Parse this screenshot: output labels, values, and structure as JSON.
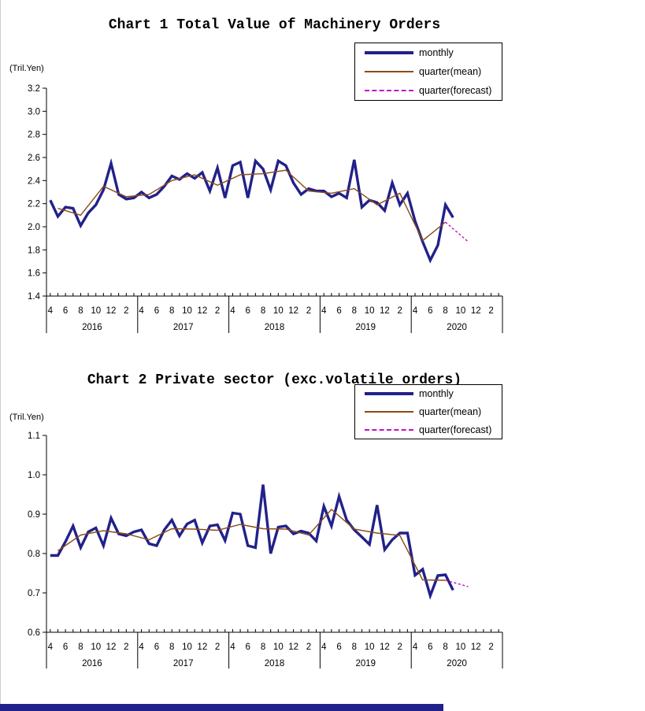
{
  "page": {
    "background": "#FFFFFF",
    "footer_bar_color": "#20218A"
  },
  "chart_data": [
    {
      "type": "line",
      "title": "Chart 1 Total Value of Machinery Orders",
      "ylabel": "(Tril.Yen)",
      "ylim": [
        1.4,
        3.2
      ],
      "ytick_step": 0.2,
      "ytick_labels": [
        "1.4",
        "1.6",
        "1.8",
        "2.0",
        "2.2",
        "2.4",
        "2.6",
        "2.8",
        "3.0",
        "3.2"
      ],
      "x_axis": {
        "month_labels": [
          "4",
          "6",
          "8",
          "10",
          "12",
          "2"
        ],
        "years": [
          "2016",
          "2017",
          "2018",
          "2019",
          "2020"
        ],
        "first_data_month": "2016-04",
        "last_actual_month": "2020-09"
      },
      "legend_position": "top-right",
      "grid": "off",
      "series": [
        {
          "name": "monthly",
          "style": "thick-solid",
          "color": "#22218A",
          "month_offset": 0,
          "month_step": 1,
          "values": [
            2.23,
            2.09,
            2.17,
            2.16,
            2.01,
            2.12,
            2.19,
            2.32,
            2.55,
            2.28,
            2.24,
            2.25,
            2.3,
            2.25,
            2.28,
            2.35,
            2.44,
            2.41,
            2.46,
            2.42,
            2.47,
            2.31,
            2.51,
            2.25,
            2.53,
            2.56,
            2.25,
            2.57,
            2.5,
            2.32,
            2.57,
            2.53,
            2.38,
            2.28,
            2.33,
            2.31,
            2.31,
            2.26,
            2.29,
            2.25,
            2.58,
            2.17,
            2.23,
            2.21,
            2.14,
            2.38,
            2.19,
            2.29,
            2.05,
            1.87,
            1.71,
            1.84,
            2.19,
            2.08
          ]
        },
        {
          "name": "quarter(mean)",
          "style": "thin-solid",
          "color": "#8C4A15",
          "month_offset": 1,
          "month_step": 3,
          "values": [
            2.16,
            2.1,
            2.35,
            2.26,
            2.28,
            2.4,
            2.45,
            2.36,
            2.45,
            2.46,
            2.49,
            2.31,
            2.29,
            2.33,
            2.19,
            2.29,
            1.88,
            2.04
          ]
        },
        {
          "name": "quarter(forecast)",
          "style": "thin-dashed",
          "color": "#C40EC4",
          "month_offset": 52,
          "month_step": 3,
          "values": [
            2.04,
            1.87
          ]
        }
      ]
    },
    {
      "type": "line",
      "title": "Chart 2 Private sector (exc.volatile orders)",
      "ylabel": "(Tril.Yen)",
      "ylim": [
        0.6,
        1.1
      ],
      "ytick_step": 0.1,
      "ytick_labels": [
        "0.6",
        "0.7",
        "0.8",
        "0.9",
        "1.0",
        "1.1"
      ],
      "x_axis": {
        "month_labels": [
          "4",
          "6",
          "8",
          "10",
          "12",
          "2"
        ],
        "years": [
          "2016",
          "2017",
          "2018",
          "2019",
          "2020"
        ],
        "first_data_month": "2016-04",
        "last_actual_month": "2020-09"
      },
      "legend_position": "top-right",
      "grid": "off",
      "series": [
        {
          "name": "monthly",
          "style": "thick-solid",
          "color": "#22218A",
          "month_offset": 0,
          "month_step": 1,
          "values": [
            0.795,
            0.795,
            0.83,
            0.87,
            0.815,
            0.855,
            0.865,
            0.82,
            0.89,
            0.85,
            0.845,
            0.855,
            0.86,
            0.825,
            0.82,
            0.86,
            0.885,
            0.845,
            0.875,
            0.885,
            0.827,
            0.87,
            0.873,
            0.833,
            0.903,
            0.9,
            0.82,
            0.815,
            0.975,
            0.8,
            0.867,
            0.87,
            0.85,
            0.857,
            0.852,
            0.832,
            0.92,
            0.87,
            0.945,
            0.885,
            0.86,
            0.842,
            0.823,
            0.923,
            0.81,
            0.835,
            0.852,
            0.852,
            0.745,
            0.76,
            0.693,
            0.744,
            0.746,
            0.707
          ]
        },
        {
          "name": "quarter(mean)",
          "style": "thin-solid",
          "color": "#8C4A15",
          "month_offset": 1,
          "month_step": 3,
          "values": [
            0.807,
            0.847,
            0.858,
            0.85,
            0.835,
            0.863,
            0.862,
            0.859,
            0.874,
            0.863,
            0.862,
            0.847,
            0.912,
            0.862,
            0.852,
            0.846,
            0.733,
            0.732
          ]
        },
        {
          "name": "quarter(forecast)",
          "style": "thin-dashed",
          "color": "#C40EC4",
          "month_offset": 52,
          "month_step": 3,
          "values": [
            0.732,
            0.716
          ]
        }
      ]
    }
  ]
}
